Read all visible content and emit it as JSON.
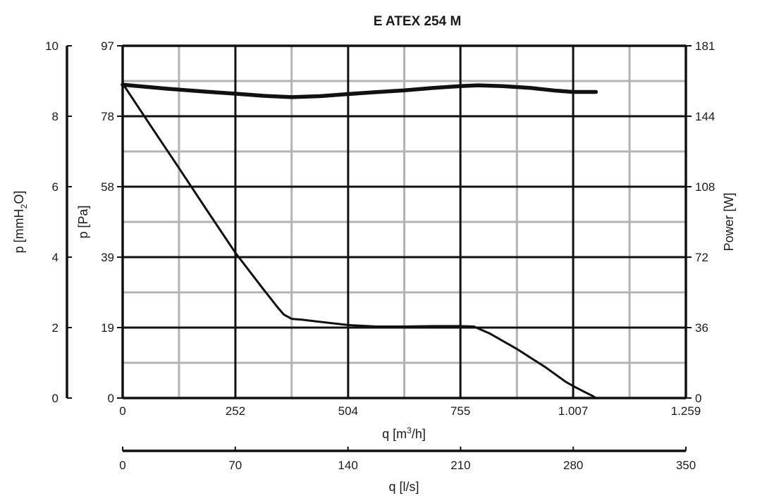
{
  "chart_data": {
    "type": "line",
    "title": "E ATEX 254 M",
    "xlabel": "q [m³/h]",
    "xlabel_secondary": "q [l/s]",
    "ylabel_left_outer": "p [mmH₂O]",
    "ylabel_left_inner": "p [Pa]",
    "ylabel_right": "Power [W]",
    "xlim": [
      0,
      1259
    ],
    "ylim": [
      0,
      97
    ],
    "ylim_power": [
      0,
      181
    ],
    "xticks": [
      0,
      252,
      504,
      755,
      1007,
      1259
    ],
    "xtick_labels": [
      "0",
      "252",
      "504",
      "755",
      "1.007",
      "1.259"
    ],
    "xticks_secondary": [
      0,
      70,
      140,
      210,
      280,
      350
    ],
    "xtick_labels_secondary": [
      "0",
      "70",
      "140",
      "210",
      "280",
      "350"
    ],
    "yticks_pa": [
      "0",
      "19",
      "39",
      "58",
      "78",
      "97"
    ],
    "yticks_mmh2o": [
      "0",
      "2",
      "4",
      "6",
      "8",
      "10"
    ],
    "yticks_power": [
      "0",
      "36",
      "72",
      "108",
      "144",
      "181"
    ],
    "grid": true,
    "series": [
      {
        "axis": "pressure",
        "x": [
          0,
          63,
          126,
          189,
          252,
          315,
          345,
          360,
          378,
          400,
          440,
          504,
          567,
          630,
          693,
          755,
          785,
          820,
          880,
          945,
          990,
          1007,
          1032,
          1050,
          1058
        ],
        "y": [
          86.6,
          74.9,
          63.3,
          51.6,
          40.0,
          29.9,
          25.2,
          23.0,
          21.8,
          21.6,
          21.0,
          20.1,
          19.7,
          19.7,
          19.8,
          19.8,
          19.7,
          17.8,
          13.6,
          8.5,
          4.5,
          3.3,
          1.7,
          0.6,
          0
        ]
      },
      {
        "axis": "power",
        "x": [
          0,
          100,
          189,
          252,
          315,
          378,
          441,
          504,
          567,
          630,
          693,
          755,
          794,
          850,
          910,
          970,
          1007,
          1058
        ],
        "y": [
          161,
          158.9,
          157.4,
          156.4,
          155.3,
          154.6,
          155.1,
          156.2,
          157.2,
          158.1,
          159.3,
          160.3,
          160.7,
          160.3,
          159.4,
          157.9,
          157.3,
          157.3
        ]
      }
    ]
  }
}
